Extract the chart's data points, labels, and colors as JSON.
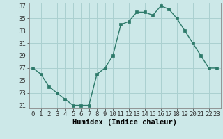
{
  "x": [
    0,
    1,
    2,
    3,
    4,
    5,
    6,
    7,
    8,
    9,
    10,
    11,
    12,
    13,
    14,
    15,
    16,
    17,
    18,
    19,
    20,
    21,
    22,
    23
  ],
  "y": [
    27,
    26,
    24,
    23,
    22,
    21,
    21,
    21,
    26,
    27,
    29,
    34,
    34.5,
    36,
    36,
    35.5,
    37,
    36.5,
    35,
    33,
    31,
    29,
    27,
    27
  ],
  "line_color": "#2d7a6a",
  "marker_color": "#2d7a6a",
  "bg_color": "#cce8e8",
  "grid_color": "#aad0d0",
  "xlabel": "Humidex (Indice chaleur)",
  "ylim": [
    20.5,
    37.5
  ],
  "xlim": [
    -0.5,
    23.5
  ],
  "yticks": [
    21,
    23,
    25,
    27,
    29,
    31,
    33,
    35,
    37
  ],
  "xticks": [
    0,
    1,
    2,
    3,
    4,
    5,
    6,
    7,
    8,
    9,
    10,
    11,
    12,
    13,
    14,
    15,
    16,
    17,
    18,
    19,
    20,
    21,
    22,
    23
  ],
  "xtick_labels": [
    "0",
    "1",
    "2",
    "3",
    "4",
    "5",
    "6",
    "7",
    "8",
    "9",
    "10",
    "11",
    "12",
    "13",
    "14",
    "15",
    "16",
    "17",
    "18",
    "19",
    "20",
    "21",
    "22",
    "23"
  ],
  "tick_fontsize": 6.5,
  "label_fontsize": 7.5,
  "marker_size": 2.5,
  "linewidth": 1.0
}
